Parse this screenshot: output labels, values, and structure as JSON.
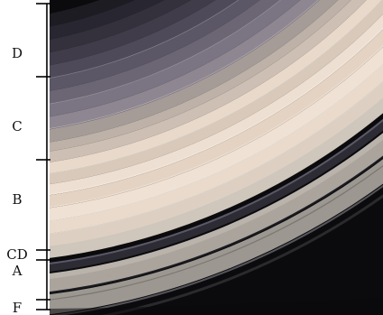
{
  "ring_labels": {
    "d": "D",
    "c": "C",
    "b": "B",
    "cd": "CD",
    "a": "A",
    "f": "F"
  },
  "colors": {
    "space": "#0b0b0d",
    "ring_cream": "#e6d6c6",
    "ring_pale": "#efe5da",
    "ring_gray": "#b6b0a9",
    "ring_dark": "#3b3a44",
    "bracket": "#000000"
  }
}
